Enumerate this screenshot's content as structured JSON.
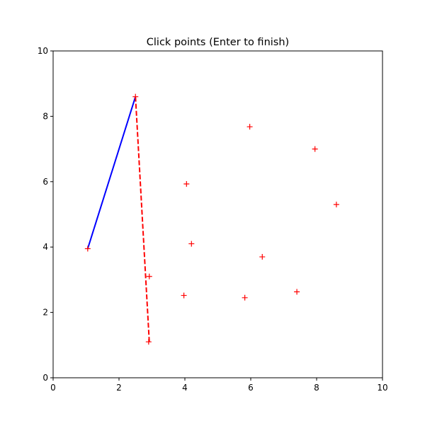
{
  "chart_data": {
    "type": "scatter",
    "title": "Click points (Enter to finish)",
    "xlabel": "",
    "ylabel": "",
    "xlim": [
      0,
      10
    ],
    "ylim": [
      0,
      10
    ],
    "xticks": [
      0,
      2,
      4,
      6,
      8,
      10
    ],
    "yticks": [
      0,
      2,
      4,
      6,
      8,
      10
    ],
    "grid": false,
    "points": {
      "marker": "+",
      "color": "#ff0000",
      "x": [
        2.5,
        1.05,
        2.9,
        2.92,
        4.05,
        4.2,
        3.97,
        5.97,
        5.82,
        6.35,
        7.95,
        7.4,
        8.6
      ],
      "y": [
        8.6,
        3.95,
        1.1,
        3.1,
        5.93,
        4.1,
        2.52,
        7.68,
        2.45,
        3.7,
        7.0,
        2.63,
        5.3
      ]
    },
    "segments": [
      {
        "style": "solid",
        "color": "#0000ff",
        "x": [
          1.05,
          2.5
        ],
        "y": [
          3.95,
          8.6
        ]
      },
      {
        "style": "dashed",
        "color": "#ff0000",
        "x": [
          2.5,
          2.92
        ],
        "y": [
          8.6,
          1.1
        ]
      }
    ]
  }
}
